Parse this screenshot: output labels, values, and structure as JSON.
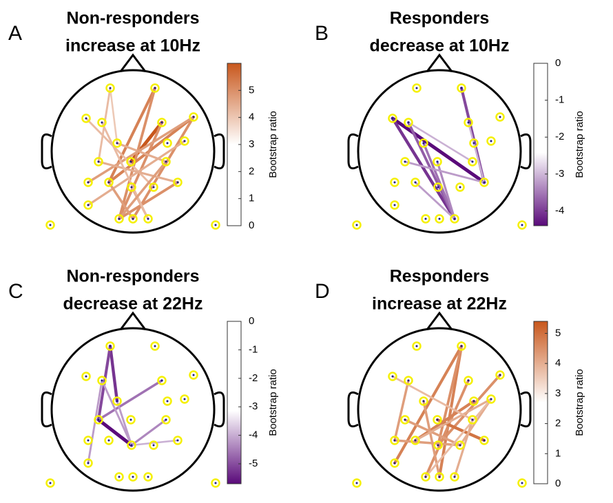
{
  "panels": [
    {
      "letter": "A",
      "title": [
        "Non-responders",
        "increase at 10Hz"
      ],
      "colorbar": {
        "label": "Bootstrap ratio",
        "lim": [
          0,
          6
        ],
        "ticks": [
          0,
          1,
          2,
          3,
          4,
          5
        ]
      }
    },
    {
      "letter": "B",
      "title": [
        "Responders",
        "decrease at 10Hz"
      ],
      "colorbar": {
        "label": "Bootstrap ratio",
        "lim": [
          -4.4,
          0
        ],
        "ticks": [
          0,
          -1,
          -2,
          -3,
          -4
        ]
      }
    },
    {
      "letter": "C",
      "title": [
        "Non-responders",
        "decrease at 22Hz"
      ],
      "colorbar": {
        "label": "Bootstrap ratio",
        "lim": [
          -5.7,
          0
        ],
        "ticks": [
          0,
          -1,
          -2,
          -3,
          -4,
          -5
        ]
      }
    },
    {
      "letter": "D",
      "title": [
        "Responders",
        "increase at 22Hz"
      ],
      "colorbar": {
        "label": "Bootstrap ratio",
        "lim": [
          0,
          5.4
        ],
        "ticks": [
          0,
          1,
          2,
          3,
          4,
          5
        ]
      }
    }
  ]
}
